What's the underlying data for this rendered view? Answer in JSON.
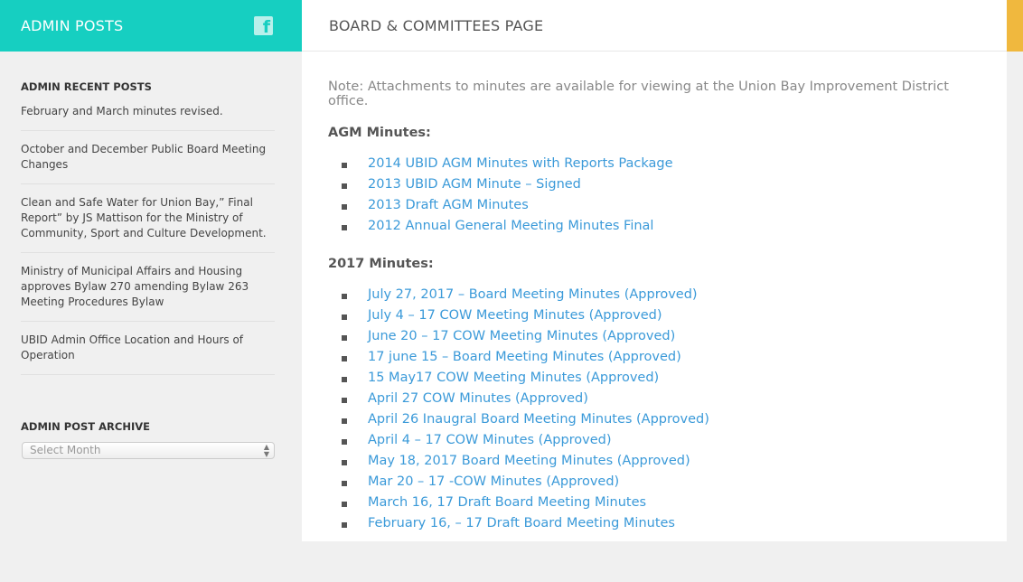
{
  "sidebar": {
    "title": "ADMIN POSTS",
    "facebook_icon": "facebook-icon",
    "recent_title": "ADMIN RECENT POSTS",
    "recent_posts": [
      "February and March minutes revised.",
      "October and December Public Board Meeting Changes",
      "Clean and Safe Water for Union Bay,” Final Report” by JS Mattison for the Ministry of Community, Sport and Culture Development.",
      "Ministry of Municipal Affairs and Housing approves Bylaw 270 amending Bylaw 263 Meeting Procedures Bylaw",
      "UBID Admin Office Location and Hours of Operation"
    ],
    "archive_title": "ADMIN POST ARCHIVE",
    "archive_select": "Select Month"
  },
  "main": {
    "title": "BOARD & COMMITTEES PAGE",
    "note": "Note: Attachments to minutes are available for viewing at the Union Bay Improvement District office.",
    "agm_heading": "AGM Minutes:",
    "agm_links": [
      "2014 UBID AGM Minutes with Reports Package",
      "2013 UBID AGM Minute – Signed",
      "2013 Draft AGM Minutes",
      "2012 Annual General Meeting Minutes Final"
    ],
    "m2017_heading": "2017 Minutes:",
    "m2017_links": [
      "July 27, 2017 – Board Meeting Minutes (Approved)",
      "July 4 – 17 COW Meeting Minutes (Approved)",
      "June 20 – 17 COW Meeting Minutes (Approved)",
      "17 june 15 – Board Meeting Minutes (Approved)",
      "15 May17 COW Meeting Minutes (Approved)",
      "April 27 COW Minutes (Approved)",
      "April 26 Inaugral Board Meeting Minutes (Approved)",
      "April 4 – 17 COW Minutes (Approved)",
      "May 18, 2017 Board Meeting Minutes (Approved)",
      "Mar 20 – 17 -COW Minutes (Approved)",
      "March 16, 17 Draft Board Meeting Minutes",
      "February 16, – 17 Draft Board Meeting Minutes"
    ]
  },
  "colors": {
    "header": "#16cfc1",
    "accent": "#f0b83e",
    "link": "#3b9ad9"
  }
}
